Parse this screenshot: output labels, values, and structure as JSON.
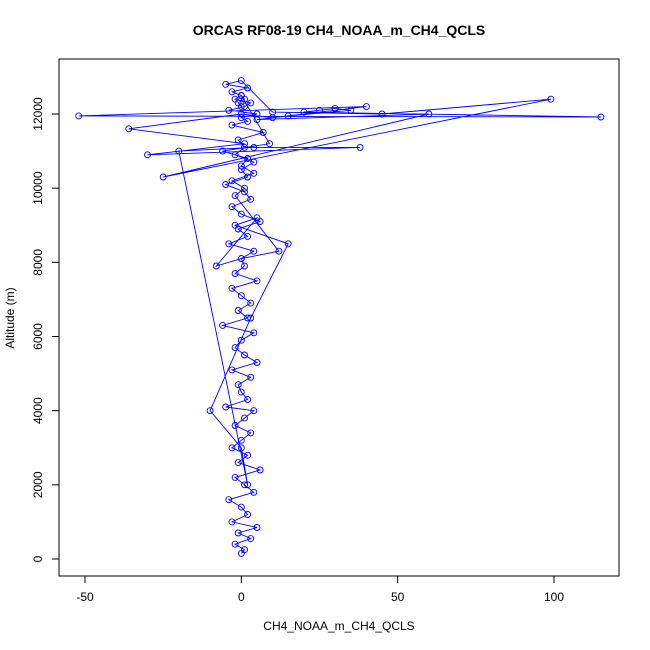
{
  "chart_data": {
    "type": "scatter",
    "title": "ORCAS RF08-19 CH4_NOAA_m_CH4_QCLS",
    "xlabel": "CH4_NOAA_m_CH4_QCLS",
    "ylabel": "Altitude (m)",
    "xlim": [
      -60,
      120
    ],
    "ylim": [
      -200,
      13300
    ],
    "xticks": [
      -50,
      0,
      50,
      100
    ],
    "yticks": [
      0,
      2000,
      4000,
      6000,
      8000,
      10000,
      12000
    ],
    "grid": false,
    "series": [
      {
        "color": "#0000ff",
        "style": "points-and-lines",
        "x": [
          0,
          1,
          -2,
          3,
          -1,
          5,
          -3,
          2,
          0,
          -4,
          4,
          1,
          -2,
          6,
          -1,
          2,
          -3,
          0,
          3,
          -2,
          1,
          4,
          -5,
          2,
          0,
          -1,
          3,
          -3,
          5,
          1,
          -2,
          0,
          4,
          -6,
          2,
          -1,
          3,
          0,
          -3,
          5,
          -2,
          1,
          0,
          4,
          -4,
          2,
          -1,
          6,
          0,
          -3,
          3,
          1,
          -5,
          2,
          0,
          4,
          -2,
          1,
          -1,
          7,
          -3,
          2,
          0,
          5,
          -4,
          1,
          3,
          -2,
          0,
          9,
          -6,
          2,
          0,
          4,
          -3,
          1,
          -2,
          12,
          0,
          -8,
          5,
          -2,
          15,
          3,
          -10,
          0,
          2,
          -20,
          4,
          38,
          -30,
          1,
          -36,
          0,
          10,
          40,
          -52,
          115,
          20,
          25,
          30,
          35,
          15,
          5,
          60,
          -25,
          99,
          45,
          10,
          0,
          -5,
          2,
          -3,
          0,
          1,
          -1,
          0
        ],
        "y": [
          150,
          250,
          400,
          550,
          700,
          850,
          1000,
          1200,
          1400,
          1600,
          1800,
          2000,
          2200,
          2400,
          2600,
          2800,
          3000,
          3200,
          3400,
          3600,
          3800,
          4000,
          4100,
          4300,
          4500,
          4700,
          4900,
          5100,
          5300,
          5500,
          5700,
          5900,
          6100,
          6300,
          6500,
          6700,
          6900,
          7100,
          7300,
          7500,
          7700,
          7900,
          8100,
          8300,
          8500,
          8700,
          8900,
          9100,
          9300,
          9500,
          9700,
          9900,
          10100,
          10300,
          10500,
          10700,
          10900,
          11100,
          11300,
          11500,
          11700,
          11800,
          11900,
          12000,
          12100,
          12200,
          12300,
          12400,
          12500,
          11200,
          11000,
          10800,
          10600,
          10400,
          10200,
          10000,
          9800,
          8300,
          8100,
          7900,
          9200,
          9000,
          8500,
          6500,
          4000,
          3000,
          2000,
          11000,
          11100,
          11100,
          10900,
          11200,
          11600,
          12000,
          11900,
          12200,
          11950,
          11920,
          12050,
          12100,
          12150,
          12100,
          11950,
          11850,
          12000,
          10300,
          12400,
          12000,
          12050,
          12900,
          12800,
          12700,
          12600,
          12500,
          12400,
          12300,
          12200
        ]
      }
    ]
  }
}
